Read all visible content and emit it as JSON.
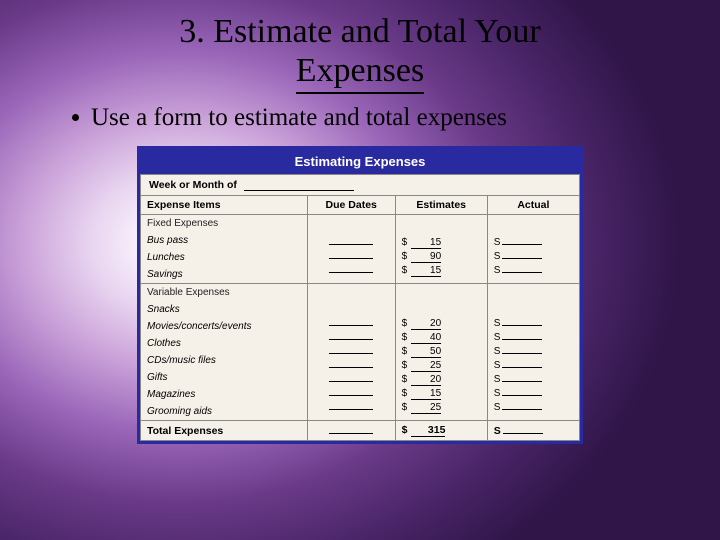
{
  "slide": {
    "title_line1": "3. Estimate and Total Your",
    "title_line2": "Expenses",
    "bullet_text": "Use a form to estimate and total expenses"
  },
  "form": {
    "header": "Estimating Expenses",
    "week_label": "Week or Month of",
    "columns": {
      "items": "Expense Items",
      "due": "Due Dates",
      "est": "Estimates",
      "act": "Actual"
    },
    "fixed_label": "Fixed Expenses",
    "variable_label": "Variable Expenses",
    "total_label": "Total Expenses",
    "currency_est": "$",
    "currency_act": "S",
    "fixed_items": [
      {
        "label": "Bus pass",
        "est": "15"
      },
      {
        "label": "Lunches",
        "est": "90"
      },
      {
        "label": "Savings",
        "est": "15"
      }
    ],
    "variable_items": [
      {
        "label": "Snacks",
        "est": "20"
      },
      {
        "label": "Movies/concerts/events",
        "est": "40"
      },
      {
        "label": "Clothes",
        "est": "50"
      },
      {
        "label": "CDs/music files",
        "est": "25"
      },
      {
        "label": "Gifts",
        "est": "20"
      },
      {
        "label": "Magazines",
        "est": "15"
      },
      {
        "label": "Grooming aids",
        "est": "25"
      }
    ],
    "total_est": "315"
  },
  "colors": {
    "header_bg": "#2a2aa0",
    "border": "#2a2aa0",
    "cell_bg": "#f5f0e8"
  }
}
